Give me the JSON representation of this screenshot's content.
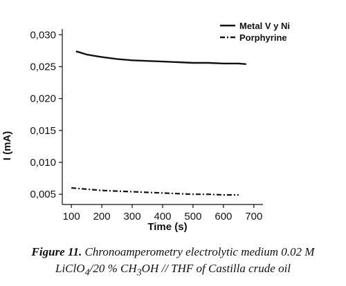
{
  "chart_data": {
    "type": "line",
    "title": "",
    "xlabel": "Time (s)",
    "ylabel": "I (mA)",
    "xlim": [
      70,
      730
    ],
    "ylim": [
      0.0034,
      0.0309
    ],
    "xticks": [
      100,
      200,
      300,
      400,
      500,
      600,
      700
    ],
    "xtick_labels": [
      "100",
      "200",
      "300",
      "400",
      "500",
      "600",
      "700"
    ],
    "yticks": [
      0.005,
      0.01,
      0.015,
      0.02,
      0.025,
      0.03
    ],
    "ytick_labels": [
      "0,005",
      "0,010",
      "0,015",
      "0,020",
      "0,025",
      "0,030"
    ],
    "grid": false,
    "legend_position": "top-right",
    "series": [
      {
        "name": "Metal V y Ni",
        "style": "solid",
        "color": "#111111",
        "x": [
          115,
          130,
          150,
          175,
          200,
          250,
          300,
          350,
          400,
          450,
          500,
          550,
          600,
          650,
          675
        ],
        "y": [
          0.0274,
          0.0272,
          0.0269,
          0.0267,
          0.0265,
          0.0262,
          0.026,
          0.0259,
          0.0258,
          0.0257,
          0.0256,
          0.0256,
          0.0255,
          0.0255,
          0.0254
        ]
      },
      {
        "name": "Porphyrine",
        "style": "dash-dot",
        "color": "#111111",
        "x": [
          100,
          150,
          200,
          250,
          300,
          350,
          400,
          450,
          500,
          550,
          600,
          650
        ],
        "y": [
          0.006,
          0.0058,
          0.0056,
          0.0055,
          0.0054,
          0.0053,
          0.0052,
          0.0051,
          0.005,
          0.005,
          0.0049,
          0.0049
        ]
      }
    ]
  },
  "caption": {
    "label": "Figure 11.",
    "line1": "Chronoamperometry electrolytic medium 0.02 M",
    "line2_a": "LiClO",
    "line2_sub1": "4",
    "line2_b": "/20 % CH",
    "line2_sub2": "3",
    "line2_c": "OH // THF of Castilla crude oil"
  }
}
